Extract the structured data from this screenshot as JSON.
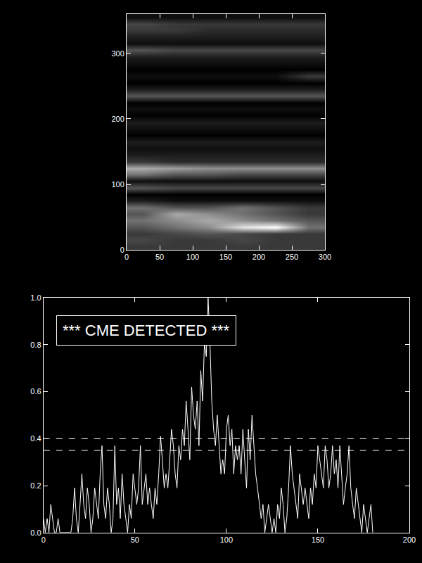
{
  "chart_data": [
    {
      "type": "heatmap",
      "x": [
        25,
        75,
        125,
        175,
        225,
        275
      ],
      "y": [
        5,
        15,
        25,
        35,
        45,
        55,
        65,
        75,
        85,
        95,
        105,
        115,
        125,
        135,
        145,
        155,
        165,
        175,
        185,
        195,
        205,
        215,
        225,
        235,
        245,
        255,
        265,
        275,
        285,
        295,
        305,
        315,
        325,
        335,
        345,
        355
      ],
      "z": [
        [
          0.3,
          0.3,
          0.3,
          0.3,
          0.3,
          0.3
        ],
        [
          0.35,
          0.3,
          0.3,
          0.35,
          0.3,
          0.3
        ],
        [
          0.3,
          0.35,
          0.4,
          0.35,
          0.3,
          0.3
        ],
        [
          0.4,
          0.5,
          0.6,
          0.9,
          1.0,
          0.5
        ],
        [
          0.5,
          0.6,
          0.7,
          0.6,
          0.5,
          0.4
        ],
        [
          0.4,
          0.7,
          0.6,
          0.5,
          0.4,
          0.3
        ],
        [
          0.5,
          0.4,
          0.4,
          0.5,
          0.4,
          0.3
        ],
        [
          0.2,
          0.15,
          0.15,
          0.15,
          0.15,
          0.15
        ],
        [
          0.1,
          0.1,
          0.1,
          0.1,
          0.1,
          0.1
        ],
        [
          0.4,
          0.35,
          0.35,
          0.35,
          0.35,
          0.35
        ],
        [
          0.15,
          0.15,
          0.15,
          0.15,
          0.15,
          0.15
        ],
        [
          0.5,
          0.4,
          0.4,
          0.35,
          0.35,
          0.35
        ],
        [
          0.7,
          0.65,
          0.6,
          0.6,
          0.6,
          0.6
        ],
        [
          0.3,
          0.25,
          0.25,
          0.25,
          0.25,
          0.25
        ],
        [
          0.2,
          0.2,
          0.2,
          0.2,
          0.2,
          0.2
        ],
        [
          0.15,
          0.15,
          0.15,
          0.15,
          0.15,
          0.15
        ],
        [
          0.2,
          0.2,
          0.2,
          0.2,
          0.2,
          0.2
        ],
        [
          0.1,
          0.1,
          0.1,
          0.1,
          0.1,
          0.1
        ],
        [
          0.15,
          0.15,
          0.15,
          0.15,
          0.15,
          0.15
        ],
        [
          0.2,
          0.2,
          0.2,
          0.2,
          0.2,
          0.2
        ],
        [
          0.1,
          0.1,
          0.1,
          0.1,
          0.1,
          0.1
        ],
        [
          0.15,
          0.15,
          0.15,
          0.15,
          0.15,
          0.15
        ],
        [
          0.1,
          0.1,
          0.1,
          0.1,
          0.1,
          0.1
        ],
        [
          0.4,
          0.4,
          0.4,
          0.4,
          0.4,
          0.4
        ],
        [
          0.2,
          0.2,
          0.2,
          0.2,
          0.2,
          0.2
        ],
        [
          0.1,
          0.1,
          0.1,
          0.1,
          0.1,
          0.1
        ],
        [
          0.15,
          0.15,
          0.15,
          0.15,
          0.15,
          0.3
        ],
        [
          0.1,
          0.1,
          0.1,
          0.1,
          0.1,
          0.1
        ],
        [
          0.15,
          0.15,
          0.15,
          0.15,
          0.15,
          0.15
        ],
        [
          0.2,
          0.2,
          0.2,
          0.2,
          0.2,
          0.2
        ],
        [
          0.4,
          0.35,
          0.35,
          0.35,
          0.35,
          0.35
        ],
        [
          0.15,
          0.15,
          0.15,
          0.15,
          0.15,
          0.15
        ],
        [
          0.2,
          0.2,
          0.2,
          0.2,
          0.2,
          0.2
        ],
        [
          0.3,
          0.3,
          0.25,
          0.25,
          0.25,
          0.25
        ],
        [
          0.35,
          0.3,
          0.3,
          0.3,
          0.3,
          0.3
        ],
        [
          0.15,
          0.15,
          0.15,
          0.15,
          0.15,
          0.15
        ]
      ],
      "xlim": [
        0,
        300
      ],
      "ylim": [
        0,
        360
      ],
      "xticks": [
        0,
        50,
        100,
        150,
        200,
        250,
        300
      ],
      "yticks": [
        0,
        100,
        200,
        300
      ]
    },
    {
      "type": "line",
      "color": "#ffffff",
      "x": [
        0,
        1,
        2,
        3,
        4,
        5,
        6,
        7,
        8,
        9,
        10,
        11,
        12,
        13,
        14,
        15,
        16,
        17,
        18,
        19,
        20,
        21,
        22,
        23,
        24,
        25,
        26,
        27,
        28,
        29,
        30,
        31,
        32,
        33,
        34,
        35,
        36,
        37,
        38,
        39,
        40,
        41,
        42,
        43,
        44,
        45,
        46,
        47,
        48,
        49,
        50,
        51,
        52,
        53,
        54,
        55,
        56,
        57,
        58,
        59,
        60,
        61,
        62,
        63,
        64,
        65,
        66,
        67,
        68,
        69,
        70,
        71,
        72,
        73,
        74,
        75,
        76,
        77,
        78,
        79,
        80,
        81,
        82,
        83,
        84,
        85,
        86,
        87,
        88,
        89,
        90,
        91,
        92,
        93,
        94,
        95,
        96,
        97,
        98,
        99,
        100,
        101,
        102,
        103,
        104,
        105,
        106,
        107,
        108,
        109,
        110,
        111,
        112,
        113,
        114,
        115,
        116,
        117,
        118,
        119,
        120,
        121,
        122,
        123,
        124,
        125,
        126,
        127,
        128,
        129,
        130,
        131,
        132,
        133,
        134,
        135,
        136,
        137,
        138,
        139,
        140,
        141,
        142,
        143,
        144,
        145,
        146,
        147,
        148,
        149,
        150,
        151,
        152,
        153,
        154,
        155,
        156,
        157,
        158,
        159,
        160,
        161,
        162,
        163,
        164,
        165,
        166,
        167,
        168,
        169,
        170,
        171,
        172,
        173,
        174,
        175,
        176,
        177,
        178,
        179,
        180
      ],
      "values": [
        0.06,
        0,
        0.06,
        0,
        0.12,
        0.06,
        0,
        0,
        0.06,
        0,
        0,
        0,
        0,
        0,
        0,
        0,
        0.06,
        0.19,
        0.06,
        0,
        0.12,
        0.25,
        0.12,
        0.06,
        0.19,
        0.12,
        0,
        0.06,
        0.19,
        0.12,
        0.06,
        0.25,
        0.37,
        0.12,
        0.06,
        0.19,
        0.12,
        0,
        0.06,
        0.37,
        0.12,
        0.19,
        0.06,
        0.25,
        0.12,
        0.06,
        0,
        0.12,
        0.06,
        0.25,
        0.19,
        0.12,
        0.19,
        0.37,
        0.12,
        0.19,
        0.25,
        0.12,
        0.19,
        0.12,
        0.06,
        0.19,
        0.12,
        0.25,
        0.41,
        0.31,
        0.19,
        0.25,
        0.19,
        0.31,
        0.44,
        0.37,
        0.25,
        0.19,
        0.37,
        0.31,
        0.44,
        0.37,
        0.56,
        0.44,
        0.31,
        0.62,
        0.5,
        0.44,
        0.56,
        0.37,
        0.69,
        0.56,
        0.81,
        0.75,
        1.0,
        0.81,
        0.56,
        0.44,
        0.37,
        0.5,
        0.37,
        0.25,
        0.31,
        0.25,
        0.44,
        0.5,
        0.37,
        0.44,
        0.25,
        0.37,
        0.31,
        0.37,
        0.25,
        0.44,
        0.31,
        0.19,
        0.44,
        0.31,
        0.5,
        0.37,
        0.25,
        0.19,
        0.12,
        0.06,
        0.12,
        0,
        0.06,
        0.12,
        0.06,
        0,
        0.06,
        0,
        0.12,
        0.06,
        0.19,
        0.12,
        0,
        0.06,
        0.19,
        0.37,
        0.25,
        0.19,
        0.12,
        0.06,
        0.25,
        0.19,
        0.12,
        0.19,
        0.12,
        0.06,
        0.19,
        0.12,
        0.25,
        0.19,
        0.37,
        0.31,
        0.25,
        0.19,
        0.37,
        0.31,
        0.19,
        0.25,
        0.37,
        0.25,
        0.31,
        0.19,
        0.37,
        0.25,
        0.12,
        0.19,
        0.25,
        0.37,
        0.19,
        0.12,
        0.06,
        0.19,
        0.12,
        0.06,
        0,
        0.12,
        0.06,
        0,
        0.06,
        0.12,
        0
      ],
      "xlim": [
        0,
        200
      ],
      "ylim": [
        0,
        1.0
      ],
      "xticks": [
        0,
        50,
        100,
        150,
        200
      ],
      "yticks": [
        {
          "value": 0,
          "label": "0.0"
        },
        {
          "value": 0.2,
          "label": "0.2"
        },
        {
          "value": 0.4,
          "label": "0.4"
        },
        {
          "value": 0.6,
          "label": "0.6"
        },
        {
          "value": 0.8,
          "label": "0.8"
        },
        {
          "value": 1.0,
          "label": "1.0"
        }
      ],
      "hlines": {
        "values": [
          0.4,
          0.35
        ],
        "line_style": "dash"
      },
      "annotations": [
        "*** CME DETECTED ***"
      ]
    }
  ]
}
